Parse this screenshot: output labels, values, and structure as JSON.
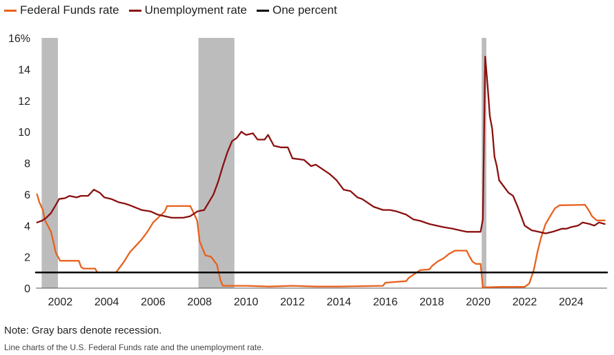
{
  "legend": {
    "items": [
      {
        "label": "Federal Funds rate",
        "color": "#e8601c"
      },
      {
        "label": "Unemployment rate",
        "color": "#8b0f0f"
      },
      {
        "label": "One percent",
        "color": "#000000"
      }
    ]
  },
  "note": "Note: Gray bars denote recession.",
  "caption": "Line charts of the U.S. Federal Funds rate and the unemployment rate.",
  "chart_data": {
    "type": "line",
    "xlim": [
      2000.95,
      2025.55
    ],
    "ylim": [
      0,
      16
    ],
    "y_ticks": [
      0,
      2,
      4,
      6,
      8,
      10,
      12,
      14,
      16
    ],
    "y_tick_labels": [
      "0",
      "2",
      "4",
      "6",
      "8",
      "10",
      "12",
      "14",
      "16%"
    ],
    "x_ticks": [
      2002,
      2004,
      2006,
      2008,
      2010,
      2012,
      2014,
      2016,
      2018,
      2020,
      2022,
      2024
    ],
    "x_tick_labels": [
      "2002",
      "2004",
      "2006",
      "2008",
      "2010",
      "2012",
      "2014",
      "2016",
      "2018",
      "2020",
      "2022",
      "2024"
    ],
    "grid": false,
    "recessions": [
      [
        2001.2,
        2001.9
      ],
      [
        2007.95,
        2009.5
      ],
      [
        2020.15,
        2020.35
      ]
    ],
    "series": [
      {
        "name": "Federal Funds rate",
        "color": "#e8601c",
        "points": [
          [
            2001.0,
            6.0
          ],
          [
            2001.1,
            5.5
          ],
          [
            2001.25,
            5.0
          ],
          [
            2001.35,
            4.3
          ],
          [
            2001.5,
            3.9
          ],
          [
            2001.6,
            3.6
          ],
          [
            2001.7,
            3.0
          ],
          [
            2001.8,
            2.3
          ],
          [
            2001.9,
            2.0
          ],
          [
            2002.0,
            1.75
          ],
          [
            2002.5,
            1.75
          ],
          [
            2002.8,
            1.75
          ],
          [
            2002.9,
            1.35
          ],
          [
            2003.0,
            1.25
          ],
          [
            2003.5,
            1.25
          ],
          [
            2003.6,
            1.0
          ],
          [
            2004.0,
            1.0
          ],
          [
            2004.4,
            1.0
          ],
          [
            2004.55,
            1.3
          ],
          [
            2004.75,
            1.7
          ],
          [
            2005.0,
            2.3
          ],
          [
            2005.5,
            3.1
          ],
          [
            2005.75,
            3.6
          ],
          [
            2006.0,
            4.2
          ],
          [
            2006.5,
            4.9
          ],
          [
            2006.6,
            5.25
          ],
          [
            2007.6,
            5.25
          ],
          [
            2007.75,
            4.8
          ],
          [
            2007.9,
            4.3
          ],
          [
            2008.0,
            3.0
          ],
          [
            2008.25,
            2.1
          ],
          [
            2008.5,
            2.0
          ],
          [
            2008.75,
            1.5
          ],
          [
            2008.9,
            0.5
          ],
          [
            2009.0,
            0.15
          ],
          [
            2010.0,
            0.15
          ],
          [
            2011.0,
            0.1
          ],
          [
            2012.0,
            0.15
          ],
          [
            2013.0,
            0.1
          ],
          [
            2014.0,
            0.1
          ],
          [
            2015.0,
            0.13
          ],
          [
            2015.9,
            0.15
          ],
          [
            2016.0,
            0.35
          ],
          [
            2016.9,
            0.45
          ],
          [
            2017.0,
            0.65
          ],
          [
            2017.25,
            0.9
          ],
          [
            2017.5,
            1.15
          ],
          [
            2017.9,
            1.2
          ],
          [
            2018.0,
            1.4
          ],
          [
            2018.25,
            1.7
          ],
          [
            2018.5,
            1.9
          ],
          [
            2018.75,
            2.2
          ],
          [
            2019.0,
            2.4
          ],
          [
            2019.5,
            2.4
          ],
          [
            2019.6,
            2.1
          ],
          [
            2019.75,
            1.7
          ],
          [
            2019.9,
            1.55
          ],
          [
            2020.1,
            1.55
          ],
          [
            2020.2,
            0.05
          ],
          [
            2021.0,
            0.08
          ],
          [
            2022.0,
            0.08
          ],
          [
            2022.2,
            0.3
          ],
          [
            2022.4,
            1.2
          ],
          [
            2022.55,
            2.3
          ],
          [
            2022.7,
            3.2
          ],
          [
            2022.9,
            4.1
          ],
          [
            2023.1,
            4.6
          ],
          [
            2023.3,
            5.1
          ],
          [
            2023.5,
            5.3
          ],
          [
            2024.6,
            5.33
          ],
          [
            2024.75,
            5.0
          ],
          [
            2024.9,
            4.6
          ],
          [
            2025.1,
            4.33
          ],
          [
            2025.45,
            4.33
          ]
        ]
      },
      {
        "name": "Unemployment rate",
        "color": "#8b0f0f",
        "points": [
          [
            2001.0,
            4.2
          ],
          [
            2001.2,
            4.3
          ],
          [
            2001.4,
            4.5
          ],
          [
            2001.6,
            4.8
          ],
          [
            2001.8,
            5.3
          ],
          [
            2001.95,
            5.7
          ],
          [
            2002.2,
            5.75
          ],
          [
            2002.4,
            5.9
          ],
          [
            2002.7,
            5.8
          ],
          [
            2002.9,
            5.9
          ],
          [
            2003.2,
            5.9
          ],
          [
            2003.45,
            6.3
          ],
          [
            2003.7,
            6.1
          ],
          [
            2003.9,
            5.8
          ],
          [
            2004.2,
            5.7
          ],
          [
            2004.5,
            5.5
          ],
          [
            2004.8,
            5.4
          ],
          [
            2005.0,
            5.3
          ],
          [
            2005.5,
            5.0
          ],
          [
            2005.9,
            4.9
          ],
          [
            2006.2,
            4.7
          ],
          [
            2006.5,
            4.6
          ],
          [
            2006.8,
            4.5
          ],
          [
            2007.0,
            4.5
          ],
          [
            2007.3,
            4.5
          ],
          [
            2007.6,
            4.6
          ],
          [
            2007.9,
            4.9
          ],
          [
            2008.2,
            5.0
          ],
          [
            2008.4,
            5.5
          ],
          [
            2008.6,
            6.0
          ],
          [
            2008.8,
            6.8
          ],
          [
            2009.0,
            7.8
          ],
          [
            2009.2,
            8.7
          ],
          [
            2009.4,
            9.4
          ],
          [
            2009.6,
            9.6
          ],
          [
            2009.8,
            10.0
          ],
          [
            2010.0,
            9.8
          ],
          [
            2010.3,
            9.9
          ],
          [
            2010.5,
            9.5
          ],
          [
            2010.8,
            9.5
          ],
          [
            2010.95,
            9.8
          ],
          [
            2011.2,
            9.1
          ],
          [
            2011.5,
            9.0
          ],
          [
            2011.8,
            9.0
          ],
          [
            2012.0,
            8.3
          ],
          [
            2012.5,
            8.2
          ],
          [
            2012.8,
            7.8
          ],
          [
            2013.0,
            7.9
          ],
          [
            2013.3,
            7.6
          ],
          [
            2013.6,
            7.3
          ],
          [
            2013.9,
            6.9
          ],
          [
            2014.2,
            6.3
          ],
          [
            2014.5,
            6.2
          ],
          [
            2014.8,
            5.8
          ],
          [
            2015.0,
            5.7
          ],
          [
            2015.5,
            5.2
          ],
          [
            2015.9,
            5.0
          ],
          [
            2016.2,
            5.0
          ],
          [
            2016.5,
            4.9
          ],
          [
            2016.9,
            4.7
          ],
          [
            2017.2,
            4.4
          ],
          [
            2017.5,
            4.3
          ],
          [
            2017.9,
            4.1
          ],
          [
            2018.2,
            4.0
          ],
          [
            2018.5,
            3.9
          ],
          [
            2018.9,
            3.8
          ],
          [
            2019.2,
            3.7
          ],
          [
            2019.5,
            3.6
          ],
          [
            2019.9,
            3.6
          ],
          [
            2020.1,
            3.6
          ],
          [
            2020.2,
            4.4
          ],
          [
            2020.3,
            14.8
          ],
          [
            2020.4,
            13.0
          ],
          [
            2020.5,
            11.0
          ],
          [
            2020.6,
            10.2
          ],
          [
            2020.7,
            8.4
          ],
          [
            2020.8,
            7.8
          ],
          [
            2020.9,
            6.9
          ],
          [
            2021.0,
            6.7
          ],
          [
            2021.3,
            6.1
          ],
          [
            2021.5,
            5.9
          ],
          [
            2021.7,
            5.2
          ],
          [
            2021.85,
            4.6
          ],
          [
            2022.0,
            4.0
          ],
          [
            2022.3,
            3.7
          ],
          [
            2022.6,
            3.6
          ],
          [
            2022.9,
            3.5
          ],
          [
            2023.2,
            3.6
          ],
          [
            2023.4,
            3.7
          ],
          [
            2023.6,
            3.8
          ],
          [
            2023.8,
            3.8
          ],
          [
            2024.0,
            3.9
          ],
          [
            2024.3,
            4.0
          ],
          [
            2024.5,
            4.2
          ],
          [
            2024.8,
            4.1
          ],
          [
            2025.0,
            4.0
          ],
          [
            2025.2,
            4.2
          ],
          [
            2025.45,
            4.1
          ]
        ]
      },
      {
        "name": "One percent",
        "color": "#000000",
        "points": [
          [
            2000.95,
            1.0
          ],
          [
            2025.55,
            1.0
          ]
        ]
      }
    ]
  }
}
